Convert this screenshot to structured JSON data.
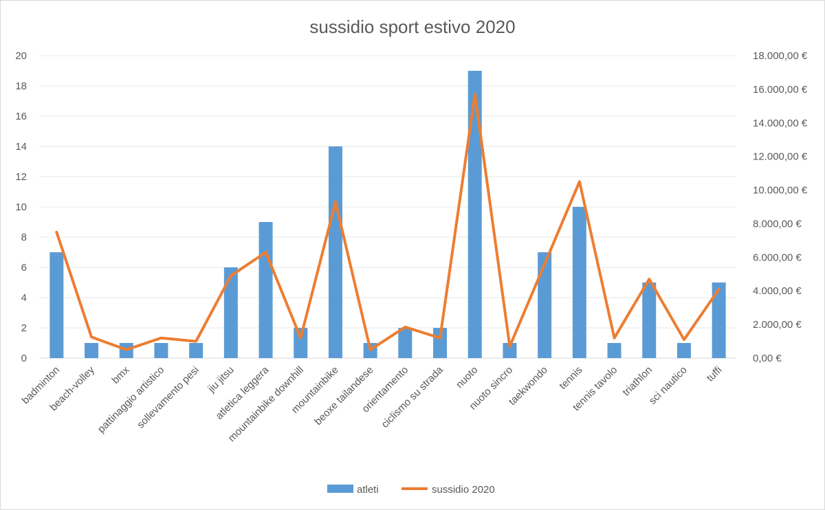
{
  "chart_data": {
    "type": "bar",
    "title": "sussidio sport estivo 2020",
    "categories": [
      "badminton",
      "beach-volley",
      "bmx",
      "pattinaggio artistico",
      "sollevamento pesi",
      "jiu jitsu",
      "atletica leggera",
      "mountainbike downhill",
      "mountainbike",
      "beoxe tailandese",
      "orientamento",
      "ciclismo su strada",
      "nuoto",
      "nuoto sincro",
      "taekwondo",
      "tennis",
      "tennis tavolo",
      "triathlon",
      "sci nautico",
      "tuffi"
    ],
    "series": [
      {
        "name": "atleti",
        "type": "bar",
        "axis": "left",
        "color": "#5b9bd5",
        "values": [
          7,
          1,
          1,
          1,
          1,
          6,
          9,
          2,
          14,
          1,
          2,
          2,
          19,
          1,
          7,
          10,
          1,
          5,
          1,
          5
        ]
      },
      {
        "name": "sussidio 2020",
        "type": "line",
        "axis": "right",
        "color": "#ed7d31",
        "values": [
          7500,
          1250,
          500,
          1200,
          1000,
          4900,
          6300,
          1200,
          9300,
          500,
          1850,
          1200,
          15700,
          700,
          5600,
          10500,
          1200,
          4700,
          1100,
          4100
        ]
      }
    ],
    "y_left": {
      "ylim": [
        0,
        20
      ],
      "ticks": [
        0,
        2,
        4,
        6,
        8,
        10,
        12,
        14,
        16,
        18,
        20
      ],
      "tick_labels": [
        "0",
        "2",
        "4",
        "6",
        "8",
        "10",
        "12",
        "14",
        "16",
        "18",
        "20"
      ]
    },
    "y_right": {
      "ylim": [
        0,
        18000
      ],
      "ticks": [
        0,
        2000,
        4000,
        6000,
        8000,
        10000,
        12000,
        14000,
        16000,
        18000
      ],
      "tick_labels": [
        "0,00 €",
        "2.000,00 €",
        "4.000,00 €",
        "6.000,00 €",
        "8.000,00 €",
        "10.000,00 €",
        "12.000,00 €",
        "14.000,00 €",
        "16.000,00 €",
        "18.000,00 €"
      ]
    },
    "grid": true,
    "legend": "bottom",
    "legend_entries": [
      "atleti",
      "sussidio 2020"
    ]
  }
}
